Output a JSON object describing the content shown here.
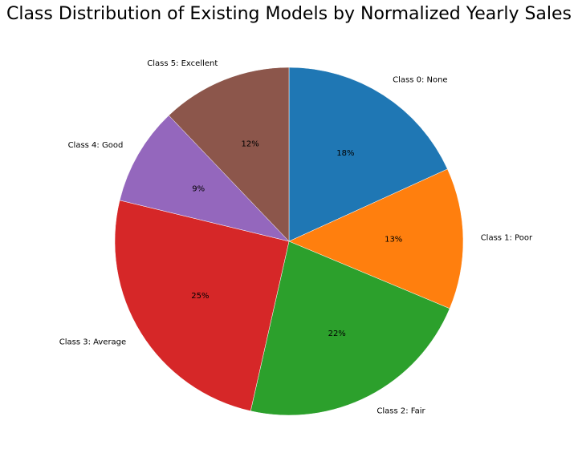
{
  "chart_data": {
    "type": "pie",
    "title": "Class Distribution of Existing Models by Normalized Yearly Sales",
    "categories": [
      "Class 0: None",
      "Class 1: Poor",
      "Class 2: Fair",
      "Class 3: Average",
      "Class 4: Good",
      "Class 5: Excellent"
    ],
    "values": [
      18,
      13,
      22,
      25,
      9,
      12
    ],
    "percent_labels": [
      "18%",
      "13%",
      "22%",
      "25%",
      "9%",
      "12%"
    ],
    "colors": [
      "#1f77b4",
      "#ff7f0e",
      "#2ca02c",
      "#d62728",
      "#9467bd",
      "#8c564b"
    ],
    "start_angle_deg": 90,
    "direction": "clockwise",
    "legend": "none"
  }
}
